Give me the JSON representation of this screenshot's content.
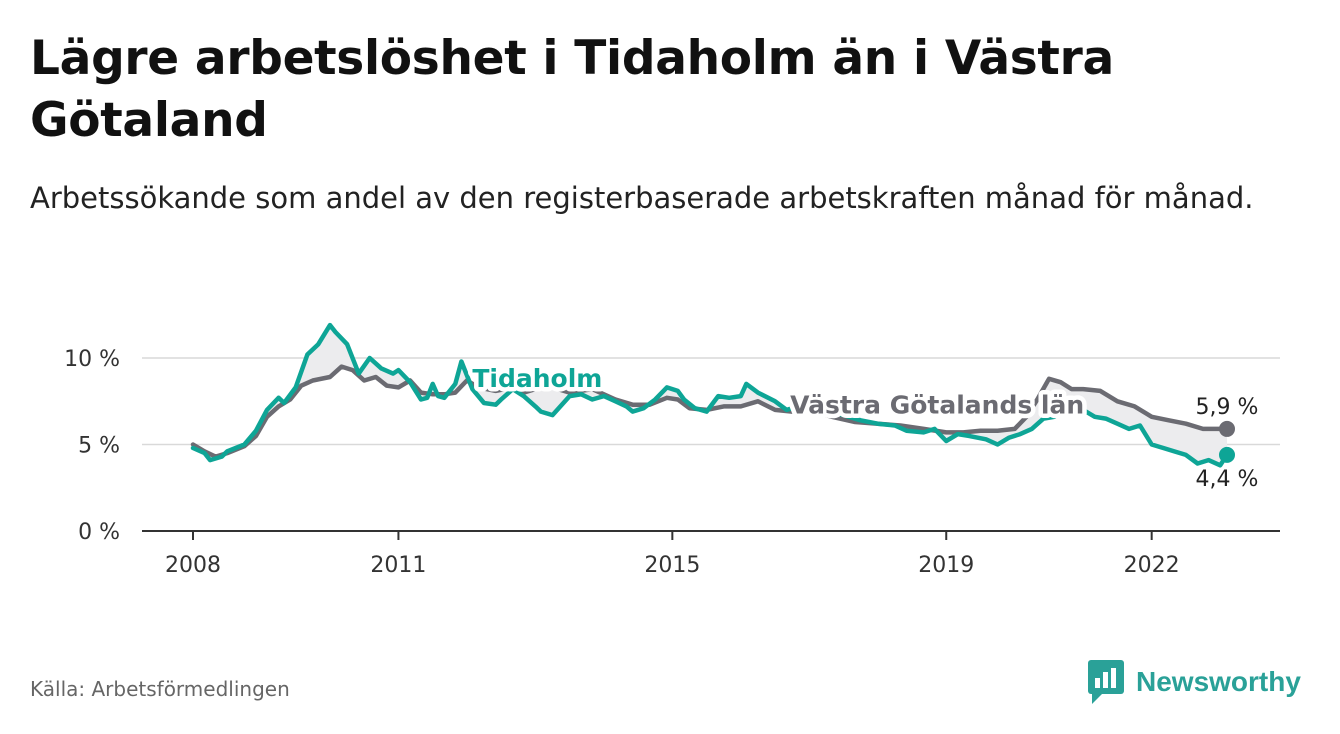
{
  "title": "Lägre arbetslöshet i Tidaholm än i Västra Götaland",
  "subtitle": "Arbetssökande som andel av den registerbaserade arbetskraften månad för månad.",
  "source": "Källa: Arbetsförmedlingen",
  "brand": "Newsworthy",
  "colors": {
    "tidaholm": "#0ea596",
    "region": "#6b6b72",
    "fill": "#ececee",
    "grid": "#d9d9d9",
    "brand": "#2aa198"
  },
  "chart_data": {
    "type": "line",
    "title": "Lägre arbetslöshet i Tidaholm än i Västra Götaland",
    "xlabel": "",
    "ylabel": "",
    "xlim": [
      2008,
      2023.1
    ],
    "ylim": [
      0,
      12
    ],
    "y_ticks": [
      {
        "value": 0,
        "label": "0 %"
      },
      {
        "value": 5,
        "label": "5 %"
      },
      {
        "value": 10,
        "label": "10 %"
      }
    ],
    "x_ticks": [
      {
        "value": 2008,
        "label": "2008"
      },
      {
        "value": 2011,
        "label": "2011"
      },
      {
        "value": 2015,
        "label": "2015"
      },
      {
        "value": 2019,
        "label": "2019"
      },
      {
        "value": 2022,
        "label": "2022"
      }
    ],
    "series": [
      {
        "name": "Tidaholm",
        "label": "Tidaholm",
        "end_label": "4,4 %",
        "points": [
          [
            2008.0,
            4.8
          ],
          [
            2008.17,
            4.5
          ],
          [
            2008.25,
            4.1
          ],
          [
            2008.42,
            4.3
          ],
          [
            2008.5,
            4.6
          ],
          [
            2008.75,
            5.0
          ],
          [
            2008.92,
            5.8
          ],
          [
            2009.08,
            7.0
          ],
          [
            2009.25,
            7.7
          ],
          [
            2009.33,
            7.4
          ],
          [
            2009.5,
            8.3
          ],
          [
            2009.67,
            10.2
          ],
          [
            2009.83,
            10.8
          ],
          [
            2010.0,
            11.9
          ],
          [
            2010.08,
            11.5
          ],
          [
            2010.25,
            10.8
          ],
          [
            2010.42,
            9.1
          ],
          [
            2010.58,
            10.0
          ],
          [
            2010.75,
            9.4
          ],
          [
            2010.92,
            9.1
          ],
          [
            2011.0,
            9.3
          ],
          [
            2011.17,
            8.6
          ],
          [
            2011.33,
            7.6
          ],
          [
            2011.42,
            7.7
          ],
          [
            2011.5,
            8.5
          ],
          [
            2011.58,
            7.8
          ],
          [
            2011.67,
            7.7
          ],
          [
            2011.83,
            8.5
          ],
          [
            2011.92,
            9.8
          ],
          [
            2012.08,
            8.2
          ],
          [
            2012.25,
            7.4
          ],
          [
            2012.42,
            7.3
          ],
          [
            2012.5,
            7.6
          ],
          [
            2012.67,
            8.2
          ],
          [
            2012.83,
            7.8
          ],
          [
            2013.0,
            7.2
          ],
          [
            2013.08,
            6.9
          ],
          [
            2013.25,
            6.7
          ],
          [
            2013.5,
            7.8
          ],
          [
            2013.67,
            7.9
          ],
          [
            2013.83,
            7.6
          ],
          [
            2014.0,
            7.8
          ],
          [
            2014.17,
            7.5
          ],
          [
            2014.33,
            7.2
          ],
          [
            2014.42,
            6.9
          ],
          [
            2014.58,
            7.1
          ],
          [
            2014.75,
            7.6
          ],
          [
            2014.92,
            8.3
          ],
          [
            2015.08,
            8.1
          ],
          [
            2015.17,
            7.6
          ],
          [
            2015.33,
            7.1
          ],
          [
            2015.5,
            6.9
          ],
          [
            2015.67,
            7.8
          ],
          [
            2015.83,
            7.7
          ],
          [
            2016.0,
            7.8
          ],
          [
            2016.08,
            8.5
          ],
          [
            2016.25,
            8.0
          ],
          [
            2016.5,
            7.5
          ],
          [
            2016.67,
            7.0
          ],
          [
            2016.83,
            7.2
          ],
          [
            2017.0,
            7.6
          ],
          [
            2017.17,
            7.3
          ],
          [
            2017.33,
            6.9
          ],
          [
            2017.58,
            6.6
          ],
          [
            2017.75,
            6.4
          ],
          [
            2018.0,
            6.2
          ],
          [
            2018.25,
            6.1
          ],
          [
            2018.42,
            5.8
          ],
          [
            2018.67,
            5.7
          ],
          [
            2018.83,
            5.9
          ],
          [
            2019.0,
            5.2
          ],
          [
            2019.17,
            5.6
          ],
          [
            2019.33,
            5.5
          ],
          [
            2019.58,
            5.3
          ],
          [
            2019.75,
            5.0
          ],
          [
            2019.92,
            5.4
          ],
          [
            2020.08,
            5.6
          ],
          [
            2020.25,
            5.9
          ],
          [
            2020.42,
            6.5
          ],
          [
            2020.58,
            6.6
          ],
          [
            2020.67,
            7.0
          ],
          [
            2020.83,
            6.9
          ],
          [
            2021.0,
            7.0
          ],
          [
            2021.17,
            6.6
          ],
          [
            2021.33,
            6.5
          ],
          [
            2021.5,
            6.2
          ],
          [
            2021.67,
            5.9
          ],
          [
            2021.83,
            6.1
          ],
          [
            2022.0,
            5.0
          ],
          [
            2022.17,
            4.8
          ],
          [
            2022.33,
            4.6
          ],
          [
            2022.5,
            4.4
          ],
          [
            2022.67,
            3.9
          ],
          [
            2022.83,
            4.1
          ],
          [
            2023.0,
            3.8
          ],
          [
            2023.1,
            4.4
          ]
        ]
      },
      {
        "name": "Västra Götalands län",
        "label": "Västra Götalands län",
        "end_label": "5,9 %",
        "points": [
          [
            2008.0,
            5.0
          ],
          [
            2008.17,
            4.6
          ],
          [
            2008.33,
            4.3
          ],
          [
            2008.5,
            4.5
          ],
          [
            2008.75,
            4.9
          ],
          [
            2008.92,
            5.5
          ],
          [
            2009.08,
            6.6
          ],
          [
            2009.25,
            7.2
          ],
          [
            2009.42,
            7.6
          ],
          [
            2009.58,
            8.4
          ],
          [
            2009.75,
            8.7
          ],
          [
            2010.0,
            8.9
          ],
          [
            2010.17,
            9.5
          ],
          [
            2010.33,
            9.3
          ],
          [
            2010.5,
            8.7
          ],
          [
            2010.67,
            8.9
          ],
          [
            2010.83,
            8.4
          ],
          [
            2011.0,
            8.3
          ],
          [
            2011.17,
            8.7
          ],
          [
            2011.33,
            8.0
          ],
          [
            2011.5,
            7.9
          ],
          [
            2011.67,
            7.9
          ],
          [
            2011.83,
            8.0
          ],
          [
            2012.0,
            8.7
          ],
          [
            2012.17,
            8.3
          ],
          [
            2012.42,
            8.1
          ],
          [
            2012.67,
            8.3
          ],
          [
            2012.83,
            8.0
          ],
          [
            2013.0,
            8.2
          ],
          [
            2013.17,
            8.4
          ],
          [
            2013.33,
            8.2
          ],
          [
            2013.5,
            8.0
          ],
          [
            2013.83,
            8.2
          ],
          [
            2014.0,
            7.9
          ],
          [
            2014.17,
            7.6
          ],
          [
            2014.42,
            7.3
          ],
          [
            2014.67,
            7.3
          ],
          [
            2014.92,
            7.7
          ],
          [
            2015.08,
            7.6
          ],
          [
            2015.25,
            7.1
          ],
          [
            2015.5,
            7.0
          ],
          [
            2015.75,
            7.2
          ],
          [
            2016.0,
            7.2
          ],
          [
            2016.25,
            7.5
          ],
          [
            2016.5,
            7.0
          ],
          [
            2016.75,
            6.9
          ],
          [
            2017.0,
            7.0
          ],
          [
            2017.33,
            6.6
          ],
          [
            2017.67,
            6.3
          ],
          [
            2018.0,
            6.2
          ],
          [
            2018.33,
            6.1
          ],
          [
            2018.67,
            5.9
          ],
          [
            2019.0,
            5.7
          ],
          [
            2019.25,
            5.7
          ],
          [
            2019.5,
            5.8
          ],
          [
            2019.75,
            5.8
          ],
          [
            2020.0,
            5.9
          ],
          [
            2020.17,
            6.6
          ],
          [
            2020.33,
            7.6
          ],
          [
            2020.5,
            8.8
          ],
          [
            2020.67,
            8.6
          ],
          [
            2020.83,
            8.2
          ],
          [
            2021.0,
            8.2
          ],
          [
            2021.25,
            8.1
          ],
          [
            2021.5,
            7.5
          ],
          [
            2021.75,
            7.2
          ],
          [
            2022.0,
            6.6
          ],
          [
            2022.25,
            6.4
          ],
          [
            2022.5,
            6.2
          ],
          [
            2022.75,
            5.9
          ],
          [
            2023.1,
            5.9
          ]
        ]
      }
    ]
  }
}
